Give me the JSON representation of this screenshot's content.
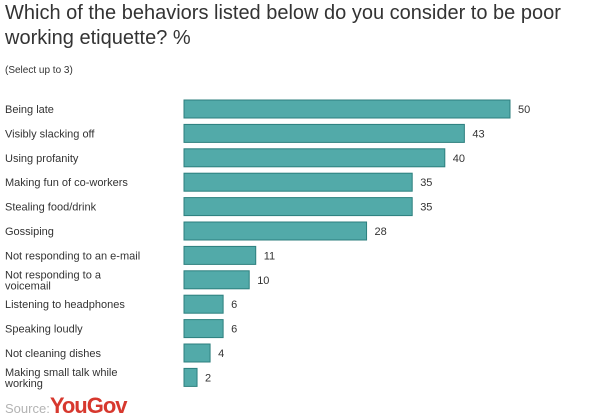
{
  "chart_data": {
    "type": "bar",
    "orientation": "horizontal",
    "title": "Which of the behaviors listed below do you consider to be poor working etiquette? %",
    "subtitle": "(Select up to 3)",
    "categories": [
      [
        "Being late"
      ],
      [
        "Visibly slacking off"
      ],
      [
        "Using profanity"
      ],
      [
        "Making fun of co-workers"
      ],
      [
        "Stealing food/drink"
      ],
      [
        "Gossiping"
      ],
      [
        "Not responding to an e-mail"
      ],
      [
        "Not responding to a",
        "voicemail"
      ],
      [
        "Listening to headphones"
      ],
      [
        "Speaking loudly"
      ],
      [
        "Not cleaning dishes"
      ],
      [
        "Making small talk while",
        "working"
      ]
    ],
    "values": [
      50,
      43,
      40,
      35,
      35,
      28,
      11,
      10,
      6,
      6,
      4,
      2
    ],
    "xlim": [
      0,
      50
    ],
    "bar_color": "#52aaa9",
    "bar_border_color": "#2c7f7e",
    "grid": false,
    "legend": "none"
  },
  "source": {
    "label": "Source:",
    "logo_text": "YouGov",
    "logo_color": "#d7382e"
  }
}
